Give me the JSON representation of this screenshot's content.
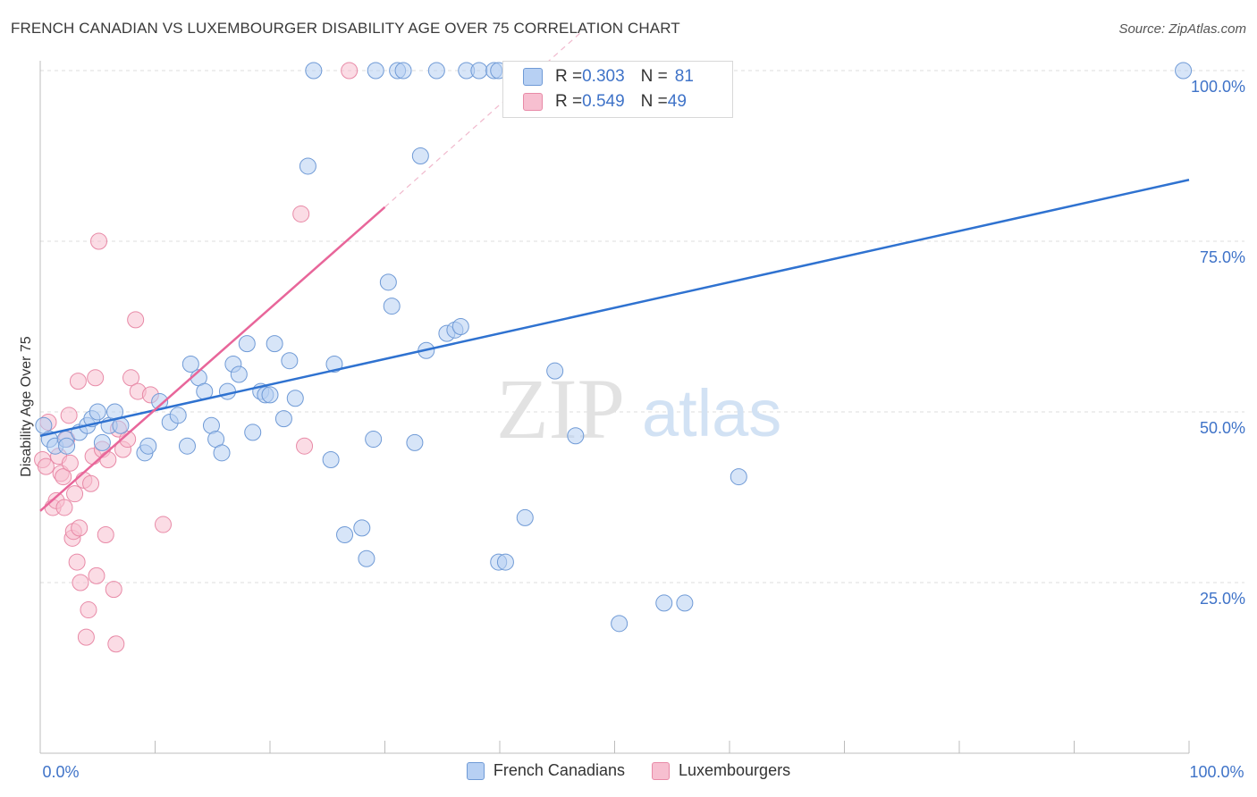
{
  "title": "FRENCH CANADIAN VS LUXEMBOURGER DISABILITY AGE OVER 75 CORRELATION CHART",
  "source": "Source: ZipAtlas.com",
  "watermark": {
    "zip": "ZIP",
    "atlas": "atlas"
  },
  "stats": {
    "french": {
      "r_label": "R = ",
      "r_value": "0.303",
      "n_label": "N = ",
      "n_value": "81"
    },
    "lux": {
      "r_label": "R = ",
      "r_value": "0.549",
      "n_label": "N = ",
      "n_value": "49"
    }
  },
  "legend": {
    "french": "French Canadians",
    "lux": "Luxembourgers"
  },
  "colors": {
    "french_fill": "#b7d0f3",
    "french_stroke": "#6f9ad6",
    "french_line": "#2f72d0",
    "lux_fill": "#f7bfd0",
    "lux_stroke": "#e88aa7",
    "lux_line": "#e8669a",
    "tick_label": "#3f73c8",
    "grid": "#dcdcdc"
  },
  "chart_data": {
    "type": "scatter",
    "title": "FRENCH CANADIAN VS LUXEMBOURGER DISABILITY AGE OVER 75 CORRELATION CHART",
    "xlabel": "",
    "ylabel": "Disability Age Over 75",
    "xlim": [
      0,
      100
    ],
    "ylim": [
      0,
      100
    ],
    "x_tick_labels": [
      "0.0%",
      "100.0%"
    ],
    "y_ticks": [
      25,
      50,
      75,
      100
    ],
    "y_tick_labels": [
      "25.0%",
      "50.0%",
      "75.0%",
      "100.0%"
    ],
    "grid": true,
    "series": [
      {
        "name": "French Canadians",
        "r": 0.303,
        "n": 81,
        "trend": {
          "x0": 0,
          "y0": 46.5,
          "x1": 100,
          "y1": 84
        },
        "points": [
          [
            0.3,
            48
          ],
          [
            0.8,
            46
          ],
          [
            1.3,
            45
          ],
          [
            2.2,
            46
          ],
          [
            2.3,
            45
          ],
          [
            3.4,
            47
          ],
          [
            4.1,
            48
          ],
          [
            4.5,
            49
          ],
          [
            5.0,
            50
          ],
          [
            5.4,
            45.5
          ],
          [
            6.0,
            48
          ],
          [
            6.5,
            50
          ],
          [
            7.0,
            48
          ],
          [
            9.1,
            44
          ],
          [
            9.4,
            45
          ],
          [
            10.4,
            51.5
          ],
          [
            11.3,
            48.5
          ],
          [
            12.0,
            49.5
          ],
          [
            12.8,
            45
          ],
          [
            13.1,
            57
          ],
          [
            13.8,
            55
          ],
          [
            14.3,
            53
          ],
          [
            14.9,
            48
          ],
          [
            15.3,
            46
          ],
          [
            15.8,
            44
          ],
          [
            16.3,
            53
          ],
          [
            16.8,
            57
          ],
          [
            17.3,
            55.5
          ],
          [
            18.0,
            60
          ],
          [
            18.5,
            47
          ],
          [
            19.2,
            53
          ],
          [
            19.6,
            52.5
          ],
          [
            20.0,
            52.5
          ],
          [
            20.4,
            60
          ],
          [
            21.2,
            49
          ],
          [
            21.7,
            57.5
          ],
          [
            22.2,
            52
          ],
          [
            23.3,
            86
          ],
          [
            23.8,
            100
          ],
          [
            25.3,
            43
          ],
          [
            25.6,
            57
          ],
          [
            26.5,
            32
          ],
          [
            28.0,
            33
          ],
          [
            28.4,
            28.5
          ],
          [
            29.0,
            46
          ],
          [
            29.2,
            100
          ],
          [
            30.3,
            69
          ],
          [
            30.6,
            65.5
          ],
          [
            31.1,
            100
          ],
          [
            31.6,
            100
          ],
          [
            32.6,
            45.5
          ],
          [
            33.1,
            87.5
          ],
          [
            33.6,
            59
          ],
          [
            34.5,
            100
          ],
          [
            35.4,
            61.5
          ],
          [
            36.1,
            62
          ],
          [
            36.6,
            62.5
          ],
          [
            37.1,
            100
          ],
          [
            38.2,
            100
          ],
          [
            39.5,
            100
          ],
          [
            39.9,
            100
          ],
          [
            39.9,
            28
          ],
          [
            40.5,
            28
          ],
          [
            42.2,
            34.5
          ],
          [
            44.8,
            56
          ],
          [
            46.6,
            46.5
          ],
          [
            50.4,
            19
          ],
          [
            54.3,
            22
          ],
          [
            56.1,
            22
          ],
          [
            60.8,
            40.5
          ],
          [
            99.5,
            100
          ]
        ]
      },
      {
        "name": "Luxembourgers",
        "r": 0.549,
        "n": 49,
        "trend": {
          "x0": 0,
          "y0": 35.5,
          "x1": 30,
          "y1": 80,
          "x_ext": 47,
          "y_ext": 105.5
        },
        "points": [
          [
            0.2,
            43
          ],
          [
            0.5,
            42
          ],
          [
            0.7,
            48.5
          ],
          [
            1.1,
            36
          ],
          [
            1.4,
            37
          ],
          [
            1.6,
            43.5
          ],
          [
            1.8,
            41
          ],
          [
            2.0,
            40.5
          ],
          [
            2.1,
            36
          ],
          [
            2.3,
            46
          ],
          [
            2.5,
            49.5
          ],
          [
            2.6,
            42.5
          ],
          [
            2.8,
            31.5
          ],
          [
            2.9,
            32.5
          ],
          [
            3.0,
            38
          ],
          [
            3.2,
            28
          ],
          [
            3.3,
            54.5
          ],
          [
            3.4,
            33
          ],
          [
            3.5,
            25
          ],
          [
            3.8,
            40
          ],
          [
            4.0,
            17
          ],
          [
            4.2,
            21
          ],
          [
            4.4,
            39.5
          ],
          [
            4.6,
            43.5
          ],
          [
            4.8,
            55
          ],
          [
            4.9,
            26
          ],
          [
            5.1,
            75
          ],
          [
            5.4,
            44.5
          ],
          [
            5.7,
            32
          ],
          [
            5.9,
            43
          ],
          [
            6.4,
            24
          ],
          [
            6.6,
            16
          ],
          [
            6.8,
            47.5
          ],
          [
            7.2,
            44.5
          ],
          [
            7.6,
            46
          ],
          [
            7.9,
            55
          ],
          [
            8.3,
            63.5
          ],
          [
            8.5,
            53
          ],
          [
            9.6,
            52.5
          ],
          [
            10.7,
            33.5
          ],
          [
            22.7,
            79
          ],
          [
            23.0,
            45
          ],
          [
            26.9,
            100
          ]
        ]
      }
    ]
  }
}
